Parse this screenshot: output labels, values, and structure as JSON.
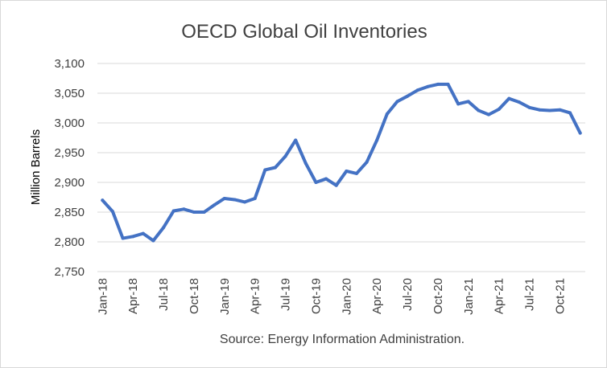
{
  "chart_data": {
    "type": "line",
    "title": "OECD Global Oil Inventories",
    "ylabel": "Million Barrels",
    "xlabel": "",
    "ylim": [
      2750,
      3100
    ],
    "yticks": [
      2750,
      2800,
      2850,
      2900,
      2950,
      3000,
      3050,
      3100
    ],
    "ytick_labels": [
      "2,750",
      "2,800",
      "2,850",
      "2,900",
      "2,950",
      "3,000",
      "3,050",
      "3,100"
    ],
    "xtick_labels": [
      "Jan-18",
      "Apr-18",
      "Jul-18",
      "Oct-18",
      "Jan-19",
      "Apr-19",
      "Jul-19",
      "Oct-19",
      "Jan-20",
      "Apr-20",
      "Jul-20",
      "Oct-20",
      "Jan-21",
      "Apr-21",
      "Jul-21",
      "Oct-21"
    ],
    "grid": true,
    "legend": "none",
    "series_color": "#4472c4",
    "x": [
      "Jan-18",
      "Feb-18",
      "Mar-18",
      "Apr-18",
      "May-18",
      "Jun-18",
      "Jul-18",
      "Aug-18",
      "Sep-18",
      "Oct-18",
      "Nov-18",
      "Dec-18",
      "Jan-19",
      "Feb-19",
      "Mar-19",
      "Apr-19",
      "May-19",
      "Jun-19",
      "Jul-19",
      "Aug-19",
      "Sep-19",
      "Oct-19",
      "Nov-19",
      "Dec-19",
      "Jan-20",
      "Feb-20",
      "Mar-20",
      "Apr-20",
      "May-20",
      "Jun-20",
      "Jul-20",
      "Aug-20",
      "Sep-20",
      "Oct-20",
      "Nov-20",
      "Dec-20",
      "Jan-21",
      "Feb-21",
      "Mar-21",
      "Apr-21",
      "May-21",
      "Jun-21",
      "Jul-21",
      "Aug-21",
      "Sep-21",
      "Oct-21",
      "Nov-21",
      "Dec-21"
    ],
    "series": [
      {
        "values": [
          2870,
          2851,
          2806,
          2809,
          2814,
          2802,
          2824,
          2852,
          2855,
          2850,
          2850,
          2862,
          2873,
          2871,
          2867,
          2873,
          2921,
          2925,
          2944,
          2971,
          2932,
          2900,
          2906,
          2895,
          2919,
          2915,
          2934,
          2971,
          3015,
          3036,
          3045,
          3055,
          3061,
          3065,
          3065,
          3032,
          3036,
          3021,
          3014,
          3023,
          3041,
          3035,
          3026,
          3022,
          3021,
          3022,
          3017,
          2983
        ]
      }
    ],
    "source": "Source: Energy Information Administration."
  }
}
